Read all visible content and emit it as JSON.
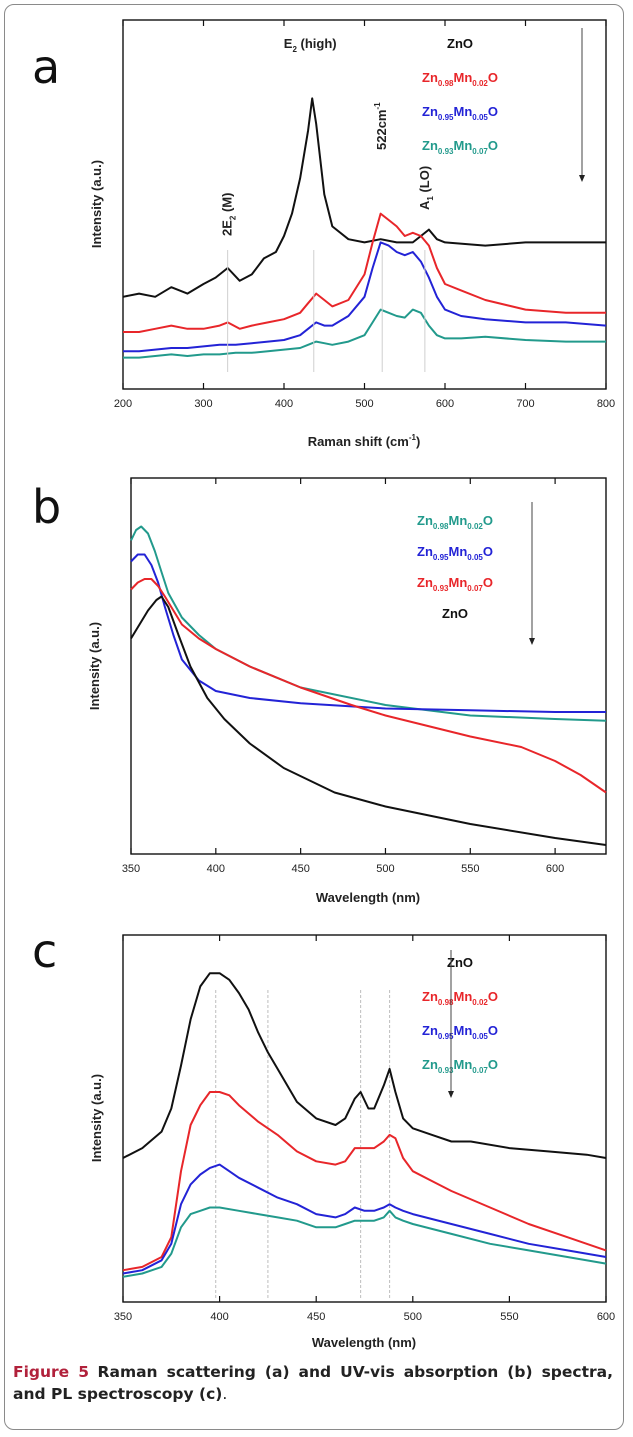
{
  "caption": {
    "figure_label": "Figure 5",
    "text": "Raman scattering (a) and UV-vis absorption (b) spectra, and PL spectroscopy (c)",
    "period": "."
  },
  "colors": {
    "ZnO": "#111111",
    "Zn0.98": "#e8262a",
    "Zn0.95": "#2323d6",
    "Zn0.93": "#229a8c"
  },
  "chart_data": [
    {
      "panel": "a",
      "type": "line",
      "xlabel": "Raman shift (cm",
      "xlabel_sup": "-1",
      "xlabel_tail": ")",
      "ylabel": "Intensity (a.u.)",
      "xlim": [
        200,
        800
      ],
      "ylim": [
        0,
        100
      ],
      "xticks": [
        200,
        300,
        400,
        500,
        600,
        700,
        800
      ],
      "grid": false,
      "legend_position": "top-right",
      "legend": [
        {
          "base": "ZnO",
          "parts": [],
          "color": "#111111"
        },
        {
          "base": "Zn",
          "parts": [
            "0.98",
            "Mn",
            "0.02",
            "O"
          ],
          "color": "#e8262a"
        },
        {
          "base": "Zn",
          "parts": [
            "0.95",
            "Mn",
            "0.05",
            "O"
          ],
          "color": "#2323d6"
        },
        {
          "base": "Zn",
          "parts": [
            "0.93",
            "Mn",
            "0.07",
            "O"
          ],
          "color": "#229a8c"
        }
      ],
      "annotations": [
        {
          "text": "2E",
          "sub": "2",
          "tail": " (M)",
          "x": 330
        },
        {
          "text": "E",
          "sub": "2",
          "tail": " (high)",
          "x": 437
        },
        {
          "text": "522cm",
          "sup": "-1",
          "tail": "",
          "x": 522
        },
        {
          "text": "A",
          "sub": "1",
          "tail": " (LO)",
          "x": 575
        }
      ],
      "series": [
        {
          "color": "#111111",
          "x": [
            200,
            220,
            240,
            260,
            280,
            300,
            315,
            330,
            345,
            360,
            375,
            390,
            400,
            410,
            420,
            430,
            435,
            440,
            450,
            460,
            480,
            500,
            520,
            540,
            560,
            570,
            580,
            590,
            600,
            650,
            700,
            750,
            800
          ],
          "y": [
            26,
            27,
            26,
            29,
            27,
            30,
            32,
            35,
            31,
            33,
            38,
            40,
            45,
            52,
            63,
            78,
            88,
            80,
            58,
            48,
            44,
            43,
            44,
            43,
            43,
            45,
            47,
            44,
            43,
            42,
            43,
            43,
            43
          ]
        },
        {
          "color": "#e8262a",
          "x": [
            200,
            220,
            240,
            260,
            280,
            300,
            320,
            330,
            345,
            360,
            380,
            400,
            420,
            430,
            440,
            450,
            460,
            480,
            500,
            510,
            520,
            530,
            540,
            550,
            560,
            570,
            580,
            590,
            600,
            620,
            650,
            700,
            750,
            800
          ],
          "y": [
            15,
            15,
            16,
            17,
            16,
            16,
            17,
            18,
            16,
            17,
            18,
            19,
            21,
            24,
            27,
            25,
            23,
            25,
            33,
            43,
            52,
            50,
            48,
            45,
            46,
            45,
            42,
            35,
            30,
            28,
            25,
            22,
            21,
            21
          ]
        },
        {
          "color": "#2323d6",
          "x": [
            200,
            220,
            240,
            260,
            280,
            300,
            320,
            340,
            360,
            380,
            400,
            420,
            430,
            440,
            450,
            460,
            480,
            500,
            510,
            520,
            530,
            540,
            550,
            560,
            570,
            580,
            590,
            600,
            620,
            650,
            700,
            750,
            800
          ],
          "y": [
            9,
            9,
            9.5,
            10,
            10,
            10.5,
            11,
            11,
            11.5,
            12,
            12.5,
            14,
            16,
            18,
            17,
            17,
            20,
            26,
            35,
            43,
            42,
            40,
            39,
            40,
            37,
            32,
            26,
            22,
            20,
            19,
            18,
            18,
            17
          ]
        },
        {
          "color": "#229a8c",
          "x": [
            200,
            220,
            240,
            260,
            280,
            300,
            320,
            340,
            360,
            380,
            400,
            420,
            430,
            440,
            450,
            460,
            480,
            500,
            510,
            520,
            530,
            540,
            550,
            560,
            570,
            580,
            590,
            600,
            620,
            650,
            700,
            750,
            800
          ],
          "y": [
            7,
            7,
            7.5,
            8,
            7.5,
            8,
            8,
            8.5,
            8.5,
            9,
            9.5,
            10,
            11,
            12,
            11.5,
            11,
            12,
            14,
            18,
            22,
            21,
            20,
            19.5,
            22,
            21,
            17,
            14,
            13,
            13,
            13.5,
            12.5,
            12,
            12
          ]
        }
      ]
    },
    {
      "panel": "b",
      "type": "line",
      "xlabel": "Wavelength (nm)",
      "ylabel": "Intensity (a.u.)",
      "xlim": [
        350,
        630
      ],
      "ylim": [
        0,
        100
      ],
      "xticks": [
        350,
        400,
        450,
        500,
        550,
        600
      ],
      "grid": false,
      "legend_position": "top-right",
      "legend": [
        {
          "base": "Zn",
          "parts": [
            "0.98",
            "Mn",
            "0.02",
            "O"
          ],
          "color": "#229a8c"
        },
        {
          "base": "Zn",
          "parts": [
            "0.95",
            "Mn",
            "0.05",
            "O"
          ],
          "color": "#2323d6"
        },
        {
          "base": "Zn",
          "parts": [
            "0.93",
            "Mn",
            "0.07",
            "O"
          ],
          "color": "#e8262a"
        },
        {
          "base": "ZnO",
          "parts": [],
          "color": "#111111"
        }
      ],
      "series": [
        {
          "color": "#229a8c",
          "x": [
            350,
            353,
            356,
            360,
            364,
            368,
            372,
            380,
            390,
            400,
            420,
            450,
            500,
            550,
            600,
            630
          ],
          "y": [
            87,
            90,
            91,
            89,
            84,
            78,
            72,
            65,
            60,
            56,
            51,
            45,
            40,
            37,
            36,
            35.5
          ]
        },
        {
          "color": "#2323d6",
          "x": [
            350,
            354,
            358,
            362,
            366,
            370,
            375,
            380,
            390,
            400,
            420,
            450,
            500,
            550,
            600,
            630
          ],
          "y": [
            81,
            83,
            83,
            80,
            75,
            68,
            60,
            53,
            47,
            44,
            42,
            40.5,
            39,
            38.5,
            38,
            38
          ]
        },
        {
          "color": "#e8262a",
          "x": [
            350,
            354,
            358,
            362,
            366,
            370,
            375,
            380,
            390,
            400,
            420,
            450,
            480,
            500,
            550,
            580,
            600,
            615,
            630
          ],
          "y": [
            73,
            75,
            76,
            76,
            74,
            71,
            67,
            63,
            59,
            56,
            51,
            45,
            40,
            37,
            31,
            28,
            24,
            20,
            15
          ]
        },
        {
          "color": "#111111",
          "x": [
            350,
            355,
            360,
            365,
            368,
            372,
            378,
            385,
            395,
            405,
            420,
            440,
            470,
            500,
            550,
            600,
            630
          ],
          "y": [
            59,
            63,
            67,
            70,
            71,
            68,
            60,
            51,
            42,
            36,
            29,
            22,
            15,
            11,
            6,
            2,
            0
          ]
        }
      ]
    },
    {
      "panel": "c",
      "type": "line",
      "xlabel": "Wavelength (nm)",
      "ylabel": "Intensity (a.u.)",
      "xlim": [
        350,
        600
      ],
      "ylim": [
        0,
        100
      ],
      "xticks": [
        350,
        400,
        450,
        500,
        550,
        600
      ],
      "grid": false,
      "legend_position": "top-right",
      "legend": [
        {
          "base": "ZnO",
          "parts": [],
          "color": "#111111"
        },
        {
          "base": "Zn",
          "parts": [
            "0.98",
            "Mn",
            "0.02",
            "O"
          ],
          "color": "#e8262a"
        },
        {
          "base": "Zn",
          "parts": [
            "0.95",
            "Mn",
            "0.05",
            "O"
          ],
          "color": "#2323d6"
        },
        {
          "base": "Zn",
          "parts": [
            "0.93",
            "Mn",
            "0.07",
            "O"
          ],
          "color": "#229a8c"
        }
      ],
      "series": [
        {
          "color": "#111111",
          "x": [
            350,
            360,
            370,
            375,
            380,
            385,
            390,
            395,
            400,
            405,
            410,
            415,
            420,
            425,
            430,
            440,
            450,
            460,
            465,
            470,
            473,
            477,
            480,
            485,
            488,
            491,
            495,
            500,
            510,
            520,
            530,
            550,
            570,
            590,
            600
          ],
          "y": [
            40,
            43,
            48,
            55,
            68,
            82,
            92,
            96,
            96,
            94,
            90,
            85,
            78,
            72,
            67,
            57,
            52,
            50,
            52,
            58,
            60,
            55,
            55,
            62,
            67,
            60,
            52,
            49,
            47,
            45,
            45,
            43,
            42,
            41,
            40
          ]
        },
        {
          "color": "#e8262a",
          "x": [
            350,
            360,
            370,
            375,
            380,
            385,
            390,
            395,
            400,
            405,
            410,
            420,
            430,
            440,
            450,
            460,
            465,
            470,
            475,
            480,
            485,
            488,
            491,
            495,
            500,
            510,
            520,
            540,
            560,
            580,
            600
          ],
          "y": [
            6,
            7,
            10,
            16,
            36,
            50,
            56,
            60,
            60,
            59,
            56,
            51,
            47,
            42,
            39,
            38,
            39,
            43,
            43,
            43,
            45,
            47,
            46,
            40,
            36,
            33,
            30,
            25,
            20,
            16,
            12
          ]
        },
        {
          "color": "#2323d6",
          "x": [
            350,
            360,
            370,
            375,
            380,
            385,
            390,
            395,
            400,
            405,
            410,
            420,
            430,
            440,
            450,
            460,
            465,
            470,
            475,
            480,
            485,
            488,
            491,
            495,
            500,
            520,
            540,
            560,
            580,
            600
          ],
          "y": [
            5,
            6,
            9,
            14,
            26,
            32,
            35,
            37,
            38,
            36,
            34,
            31,
            28,
            26,
            23,
            22,
            23,
            25,
            24,
            24,
            25,
            26,
            25,
            24,
            23,
            20,
            17,
            14,
            12,
            10
          ]
        },
        {
          "color": "#229a8c",
          "x": [
            350,
            360,
            370,
            375,
            380,
            385,
            390,
            395,
            400,
            410,
            420,
            430,
            440,
            450,
            460,
            465,
            470,
            475,
            480,
            485,
            488,
            491,
            495,
            500,
            520,
            540,
            560,
            580,
            600
          ],
          "y": [
            4,
            5,
            7,
            11,
            19,
            23,
            24,
            25,
            25,
            24,
            23,
            22,
            21,
            19,
            19,
            20,
            21,
            21,
            21,
            22,
            24,
            22,
            21,
            20,
            17,
            14,
            12,
            10,
            8
          ]
        }
      ]
    }
  ]
}
